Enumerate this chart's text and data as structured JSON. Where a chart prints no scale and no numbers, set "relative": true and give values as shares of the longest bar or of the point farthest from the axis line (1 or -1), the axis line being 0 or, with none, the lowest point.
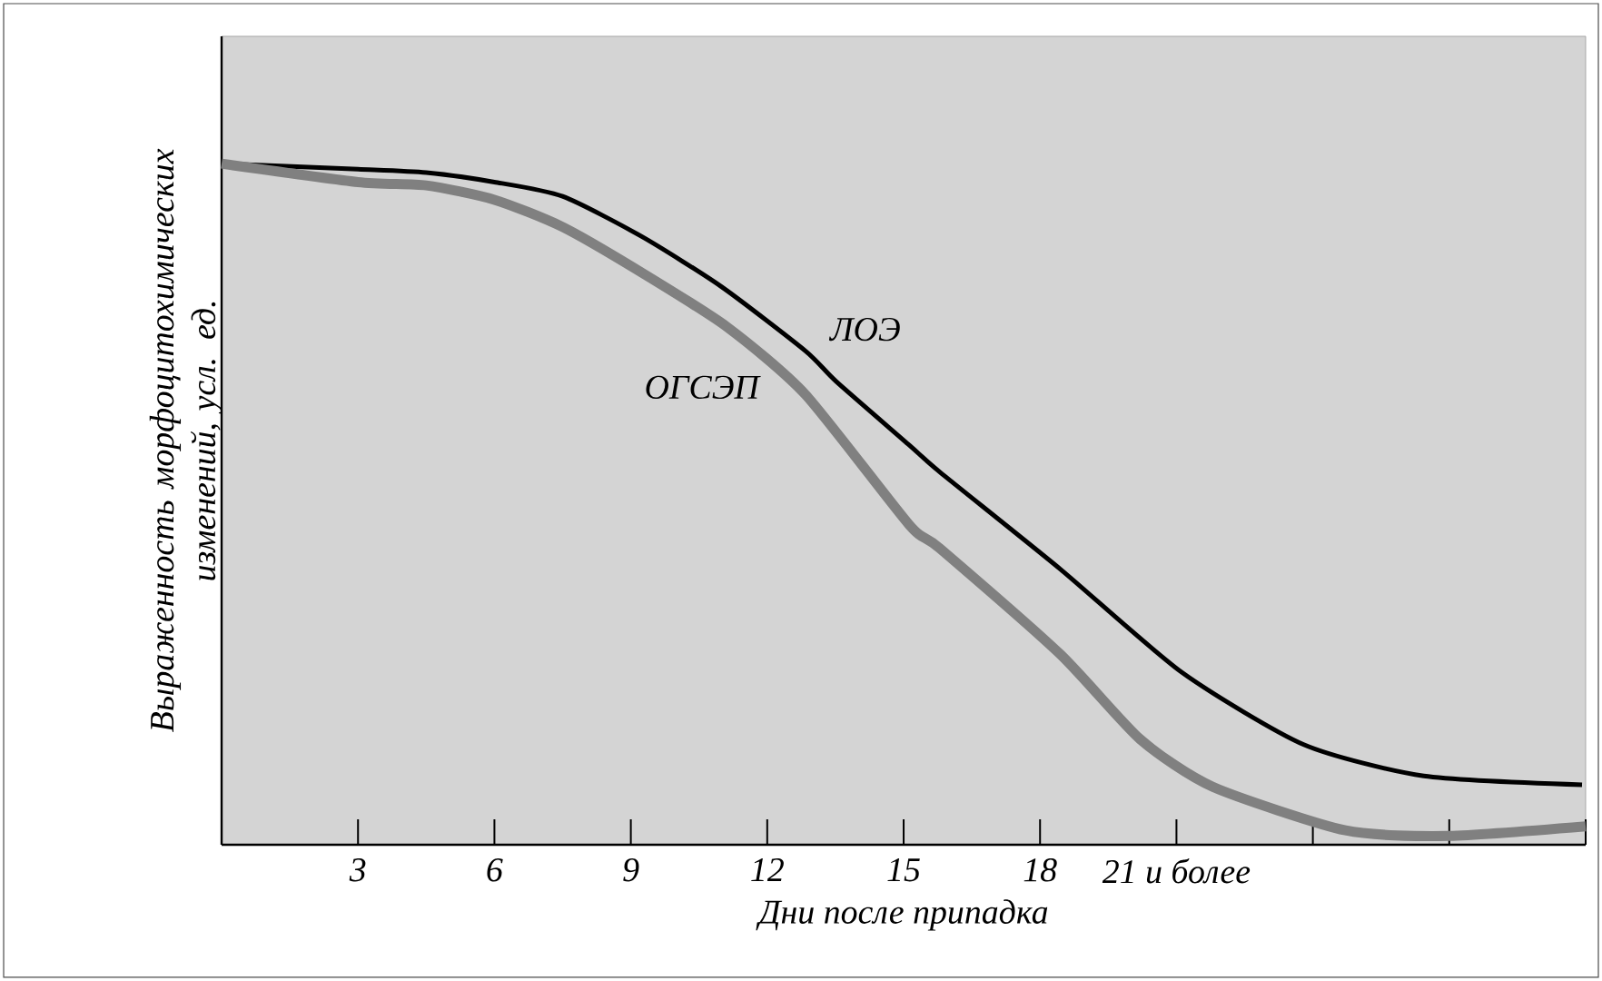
{
  "chart_data": {
    "type": "line",
    "relative": true,
    "xlabel": "Дни после припадка",
    "ylabel": "Выраженность морфоцитохимических изменений, усл. ед.",
    "xlim": [
      0,
      30
    ],
    "xticks": [
      {
        "value": 0,
        "label": null
      },
      3,
      6,
      9,
      12,
      15,
      18,
      {
        "value": 21,
        "label": "21 и более"
      },
      {
        "value": 24,
        "label": null
      },
      {
        "value": 27,
        "label": null
      },
      {
        "value": 30,
        "label": null
      }
    ],
    "series": [
      {
        "name": "ЛОЭ",
        "color": "#000000",
        "x": [
          0,
          3,
          4.5,
          6,
          7.5,
          9.24,
          11,
          12.84,
          13.52,
          15.12,
          15.8,
          18.44,
          21.12,
          23.8,
          26.44,
          29.92
        ],
        "values": [
          1.0,
          0.992,
          0.987,
          0.973,
          0.952,
          0.893,
          0.819,
          0.725,
          0.68,
          0.587,
          0.547,
          0.405,
          0.253,
          0.147,
          0.101,
          0.088
        ]
      },
      {
        "name": "ОГСЭП",
        "color": "#808080",
        "x": [
          0,
          3,
          4.5,
          6,
          7.5,
          9.24,
          11.12,
          12.84,
          15.12,
          15.8,
          18.44,
          20.2,
          21.8,
          24.72,
          27,
          30
        ],
        "values": [
          1.0,
          0.973,
          0.968,
          0.947,
          0.907,
          0.84,
          0.76,
          0.661,
          0.47,
          0.435,
          0.28,
          0.155,
          0.085,
          0.021,
          0.013,
          0.027
        ]
      }
    ],
    "grid": false,
    "marker": "none",
    "line_style": "solid"
  }
}
